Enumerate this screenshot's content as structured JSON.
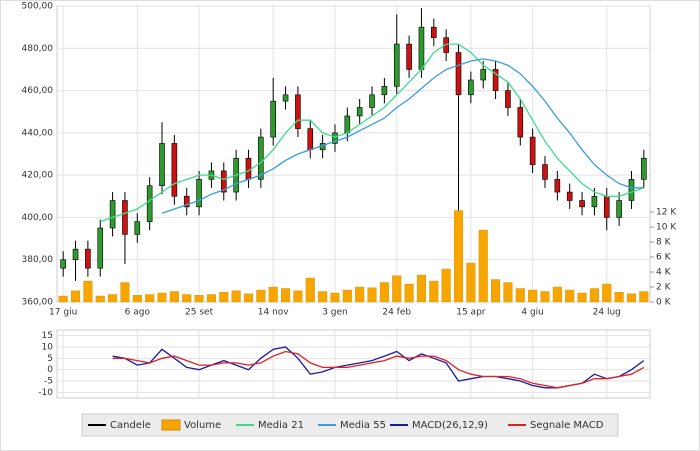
{
  "chart_data": [
    {
      "type": "candlestick",
      "categories": [
        "17 giu",
        null,
        null,
        null,
        null,
        null,
        "6 ago",
        null,
        null,
        null,
        null,
        "25 set",
        null,
        null,
        null,
        null,
        null,
        "14 nov",
        null,
        null,
        null,
        null,
        "3 gen",
        null,
        null,
        null,
        null,
        "24 feb",
        null,
        null,
        null,
        null,
        null,
        "15 apr",
        null,
        null,
        null,
        null,
        "4 giu",
        null,
        null,
        null,
        null,
        null,
        "24 lug",
        null,
        null,
        null
      ],
      "ylim": [
        360,
        500
      ],
      "yticks": [
        {
          "value": 360,
          "label": "360,00"
        },
        {
          "value": 380,
          "label": "380,00"
        },
        {
          "value": 400,
          "label": "400,00"
        },
        {
          "value": 420,
          "label": "420,00"
        },
        {
          "value": 440,
          "label": "440,00"
        },
        {
          "value": 460,
          "label": "460,00"
        },
        {
          "value": 480,
          "label": "480,00"
        },
        {
          "value": 500,
          "label": "500,00"
        }
      ],
      "y2lim": [
        0,
        39.5
      ],
      "y2ticks": [
        {
          "value": 0,
          "label": "0 K"
        },
        {
          "value": 2,
          "label": "2 K"
        },
        {
          "value": 4,
          "label": "4 K"
        },
        {
          "value": 6,
          "label": "6 K"
        },
        {
          "value": 8,
          "label": "8 K"
        },
        {
          "value": 10,
          "label": "10 K"
        },
        {
          "value": 12,
          "label": "12 K"
        }
      ],
      "grid": true,
      "series": [
        {
          "name": "Candele",
          "color": "#000000",
          "up_color": "#2e9a2e",
          "down_color": "#cc1111",
          "open": [
            376,
            380,
            385,
            376,
            395,
            408,
            392,
            398,
            415,
            435,
            410,
            405,
            418,
            422,
            412,
            428,
            418,
            438,
            455,
            458,
            442,
            432,
            435,
            440,
            448,
            452,
            458,
            462,
            482,
            470,
            490,
            485,
            478,
            458,
            465,
            470,
            460,
            452,
            438,
            425,
            418,
            412,
            408,
            405,
            410,
            400,
            408,
            418
          ],
          "high": [
            384,
            389,
            389,
            399,
            412,
            412,
            402,
            419,
            445,
            439,
            414,
            422,
            426,
            426,
            432,
            432,
            442,
            466,
            462,
            462,
            446,
            439,
            444,
            452,
            456,
            462,
            466,
            496,
            486,
            499,
            494,
            489,
            482,
            469,
            474,
            474,
            464,
            456,
            442,
            429,
            422,
            416,
            412,
            414,
            414,
            412,
            422,
            432
          ],
          "low": [
            372,
            370,
            372,
            372,
            391,
            378,
            388,
            394,
            411,
            406,
            401,
            401,
            414,
            408,
            408,
            414,
            414,
            434,
            451,
            438,
            428,
            428,
            431,
            436,
            444,
            448,
            454,
            458,
            466,
            466,
            481,
            474,
            402,
            454,
            461,
            456,
            448,
            434,
            421,
            414,
            408,
            404,
            401,
            401,
            394,
            396,
            404,
            414
          ],
          "close": [
            380,
            385,
            376,
            395,
            408,
            392,
            398,
            415,
            435,
            410,
            405,
            418,
            422,
            412,
            428,
            418,
            438,
            455,
            458,
            442,
            432,
            435,
            440,
            448,
            452,
            458,
            462,
            482,
            470,
            490,
            485,
            478,
            458,
            465,
            470,
            460,
            452,
            438,
            425,
            418,
            412,
            408,
            405,
            410,
            400,
            408,
            418,
            428
          ]
        },
        {
          "name": "Volume",
          "type": "bar",
          "axis": "y2",
          "color": "#f7a600",
          "values": [
            0.8,
            1.5,
            2.8,
            0.8,
            1,
            2.6,
            0.9,
            1,
            1.2,
            1.4,
            1,
            0.9,
            1,
            1.3,
            1.5,
            1.1,
            1.6,
            2,
            1.8,
            1.5,
            3.2,
            1.4,
            1.2,
            1.6,
            2,
            1.9,
            2.6,
            3.5,
            2.4,
            3.6,
            2.8,
            4.4,
            12.2,
            5.2,
            9.6,
            3,
            2.6,
            1.8,
            1.6,
            1.4,
            2,
            1.6,
            1.2,
            1.8,
            2.4,
            1.3,
            1.1,
            1.4
          ]
        },
        {
          "name": "Media 21",
          "type": "line",
          "color": "#3ddc8c",
          "values": [
            null,
            null,
            null,
            398,
            400,
            402,
            404,
            408,
            412,
            416,
            418,
            420,
            420,
            418,
            420,
            422,
            426,
            432,
            440,
            446,
            446,
            440,
            438,
            440,
            444,
            448,
            452,
            458,
            464,
            470,
            478,
            482,
            482,
            478,
            472,
            468,
            464,
            456,
            446,
            436,
            428,
            422,
            416,
            412,
            410,
            410,
            412,
            414
          ]
        },
        {
          "name": "Media 55",
          "type": "line",
          "color": "#3b9be0",
          "values": [
            null,
            null,
            null,
            null,
            null,
            null,
            null,
            null,
            402,
            404,
            406,
            408,
            411,
            413,
            416,
            418,
            420,
            423,
            427,
            430,
            432,
            434,
            436,
            438,
            441,
            444,
            447,
            452,
            456,
            461,
            466,
            470,
            472,
            474,
            475,
            474,
            472,
            468,
            462,
            455,
            447,
            440,
            432,
            425,
            420,
            416,
            414,
            414
          ]
        }
      ]
    },
    {
      "type": "line",
      "ylim": [
        -12.5,
        17.5
      ],
      "yticks": [
        -10,
        -5,
        0,
        5,
        10,
        15
      ],
      "grid": true,
      "series": [
        {
          "name": "MACD(26,12,9)",
          "color": "#1a1aa0",
          "values": [
            null,
            null,
            null,
            null,
            6,
            5,
            2,
            3,
            9,
            5,
            1,
            0,
            2,
            4,
            2,
            0,
            5,
            9,
            10,
            5,
            -2,
            -1,
            1,
            2,
            3,
            4,
            6,
            8,
            4,
            7,
            5,
            3,
            -5,
            -4,
            -3,
            -3,
            -4,
            -5,
            -7,
            -8,
            -8,
            -7,
            -6,
            -2,
            -4,
            -3,
            0,
            4
          ]
        },
        {
          "name": "Segnale MACD",
          "color": "#dd2222",
          "values": [
            null,
            null,
            null,
            null,
            5,
            5,
            4,
            3,
            5,
            6,
            4,
            2,
            2,
            3,
            3,
            2,
            3,
            6,
            8,
            7,
            3,
            1,
            1,
            1,
            2,
            3,
            4,
            6,
            5,
            6,
            6,
            4,
            0,
            -2,
            -3,
            -3,
            -3,
            -4,
            -6,
            -7,
            -8,
            -7,
            -6,
            -4,
            -4,
            -3,
            -2,
            1
          ]
        }
      ]
    }
  ]
}
